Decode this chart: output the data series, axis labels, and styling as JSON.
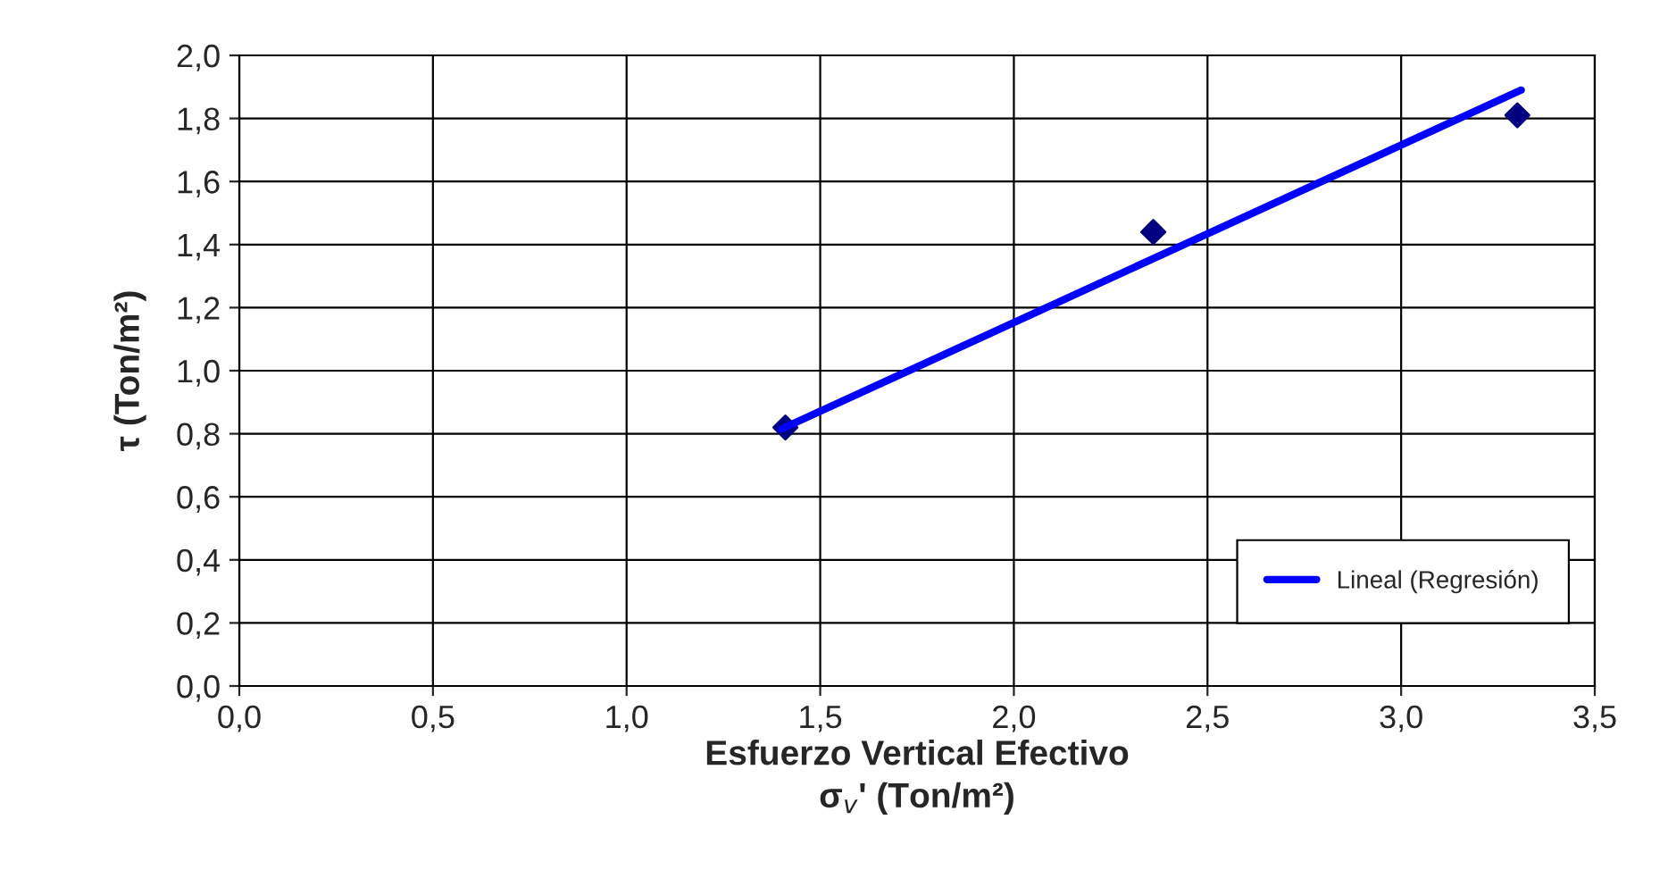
{
  "chart_data": {
    "type": "scatter",
    "xlabel": "Esfuerzo Vertical Efectivo\nσ$_{v}$' (Ton/m²)",
    "ylabel": "τ (Ton/m²)",
    "series": [
      {
        "color": "#000080",
        "x": [
          1.41,
          2.36,
          3.3
        ],
        "values": [
          0.82,
          1.44,
          1.81
        ],
        "marker": "diamond"
      },
      {
        "type": "line",
        "name": "Lineal (Regresión)",
        "color": "#0000ff",
        "x": [
          1.4,
          3.31
        ],
        "values": [
          0.815,
          1.89
        ],
        "marker": "none"
      }
    ],
    "xlim": [
      0,
      3.5
    ],
    "ylim": [
      0,
      2.0
    ],
    "xticks": [
      {
        "value": 0,
        "label": "0,0"
      },
      {
        "value": 0.5,
        "label": "0,5"
      },
      {
        "value": 1.0,
        "label": "1,0"
      },
      {
        "value": 1.5,
        "label": "1,5"
      },
      {
        "value": 2.0,
        "label": "2,0"
      },
      {
        "value": 2.5,
        "label": "2,5"
      },
      {
        "value": 3.0,
        "label": "3,0"
      },
      {
        "value": 3.5,
        "label": "3,5"
      }
    ],
    "yticks": [
      {
        "value": 0,
        "label": "0,0"
      },
      {
        "value": 0.2,
        "label": "0,2"
      },
      {
        "value": 0.4,
        "label": "0,4"
      },
      {
        "value": 0.6,
        "label": "0,6"
      },
      {
        "value": 0.8,
        "label": "0,8"
      },
      {
        "value": 1.0,
        "label": "1,0"
      },
      {
        "value": 1.2,
        "label": "1,2"
      },
      {
        "value": 1.4,
        "label": "1,4"
      },
      {
        "value": 1.6,
        "label": "1,6"
      },
      {
        "value": 1.8,
        "label": "1,8"
      },
      {
        "value": 2.0,
        "label": "2,0"
      }
    ],
    "grid": true,
    "legend": "bottom right"
  }
}
